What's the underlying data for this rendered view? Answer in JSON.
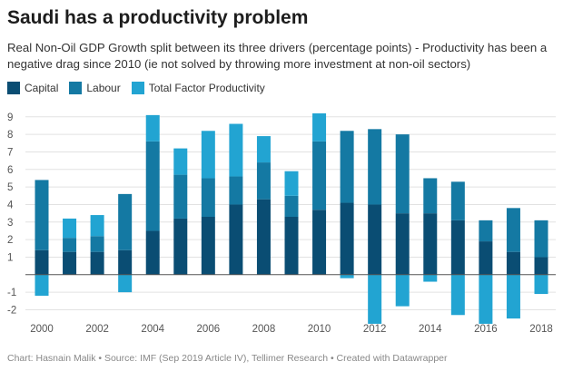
{
  "colors": {
    "capital": "#0a4d73",
    "labour": "#1479a3",
    "tfp": "#22a4d2",
    "grid": "#e2e2e2",
    "zero": "#555555"
  },
  "chart_data": {
    "type": "bar",
    "stacked": true,
    "title": "Saudi has a productivity problem",
    "subtitle": "Real Non-Oil GDP Growth split between its three drivers (percentage points) - Productivity has been a negative drag since 2010 (ie not solved by throwing more investment at non-oil sectors)",
    "xlabel": "",
    "ylabel": "",
    "ylim": [
      -2.7,
      9.3
    ],
    "yticks": [
      -2,
      -1,
      1,
      2,
      3,
      4,
      5,
      6,
      7,
      8,
      9
    ],
    "yticks_labels": [
      "-2",
      "-1",
      "1",
      "2",
      "3",
      "4",
      "5",
      "6",
      "7",
      "8",
      "9"
    ],
    "grid": true,
    "legend_position": "top-left",
    "categories": [
      "2000",
      "2001",
      "2002",
      "2003",
      "2004",
      "2005",
      "2006",
      "2007",
      "2008",
      "2009",
      "2010",
      "2011",
      "2012",
      "2013",
      "2014",
      "2015",
      "2016",
      "2017",
      "2018"
    ],
    "xtick_labels": [
      "2000",
      "2002",
      "2004",
      "2006",
      "2008",
      "2010",
      "2012",
      "2014",
      "2016",
      "2018"
    ],
    "series": [
      {
        "name": "Capital",
        "values": [
          1.4,
          1.3,
          1.3,
          1.4,
          2.5,
          3.2,
          3.3,
          4.0,
          4.3,
          3.3,
          3.7,
          4.1,
          4.0,
          3.5,
          3.5,
          3.1,
          1.9,
          1.3,
          1.0
        ]
      },
      {
        "name": "Labour",
        "values": [
          4.0,
          0.8,
          0.9,
          3.2,
          5.1,
          2.5,
          2.2,
          1.6,
          2.1,
          1.2,
          3.9,
          4.1,
          4.3,
          4.5,
          2.0,
          2.2,
          1.2,
          2.5,
          2.1
        ]
      },
      {
        "name": "Total Factor Productivity",
        "values": [
          -1.2,
          1.1,
          1.2,
          -1.0,
          1.5,
          1.5,
          2.7,
          3.0,
          1.5,
          1.4,
          1.6,
          -0.2,
          -2.8,
          -1.8,
          -0.4,
          -2.3,
          -2.8,
          -2.5,
          -1.1
        ]
      }
    ]
  },
  "footer": {
    "credit": "Chart: Hasnain Malik • Source: IMF (Sep 2019 Article IV), Tellimer Research • Created with Datawrapper"
  }
}
